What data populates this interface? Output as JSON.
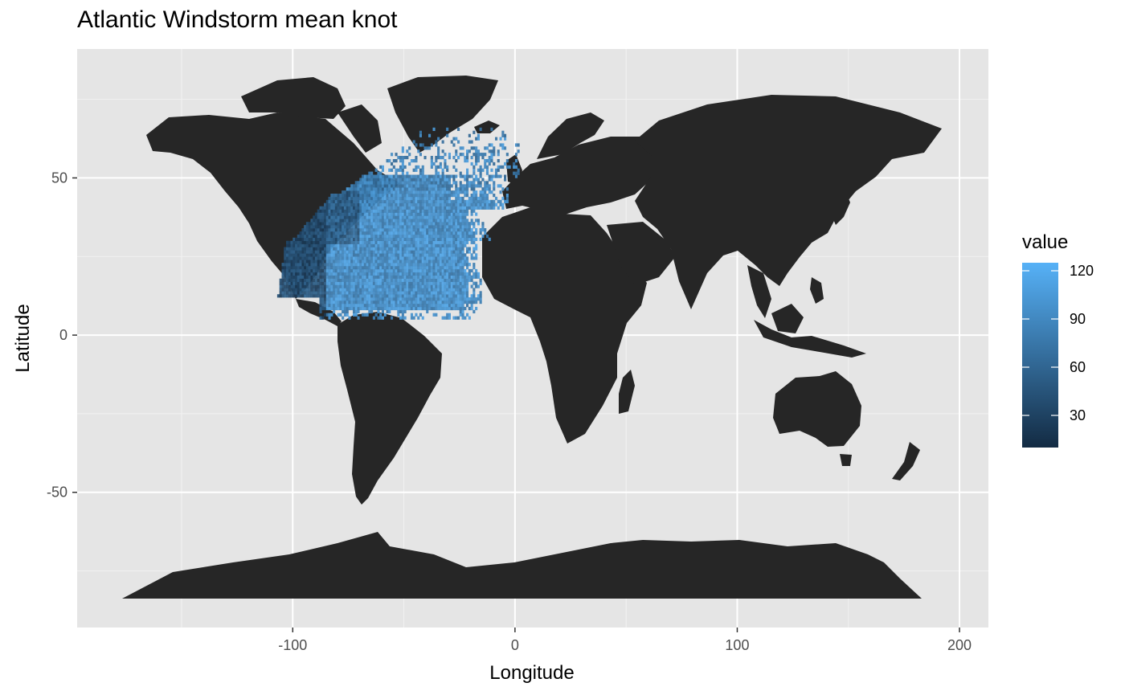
{
  "chart_data": {
    "type": "heatmap",
    "title": "Atlantic Windstorm mean knot",
    "xlabel": "Longitude",
    "ylabel": "Latitude",
    "x_ticks": [
      -100,
      0,
      100,
      200
    ],
    "y_ticks": [
      -50,
      0,
      50
    ],
    "xlim": [
      -197,
      213
    ],
    "ylim": [
      -93,
      91
    ],
    "grid": true,
    "legend": {
      "title": "value",
      "position": "right",
      "ticks": [
        30,
        60,
        90,
        120
      ],
      "range": [
        10,
        125
      ],
      "colors": [
        "#132B43",
        "#56B1F7"
      ]
    },
    "basemap": "world",
    "colors": {
      "panel": "#e5e5e5",
      "land": "#262626",
      "grid_major": "#ffffff",
      "grid_minor": "#f2f2f2"
    },
    "cells_region": {
      "lon_range": [
        -107,
        2
      ],
      "lat_range": [
        5,
        66
      ],
      "cell_size_degrees": 1,
      "value_range": [
        10,
        125
      ]
    }
  }
}
